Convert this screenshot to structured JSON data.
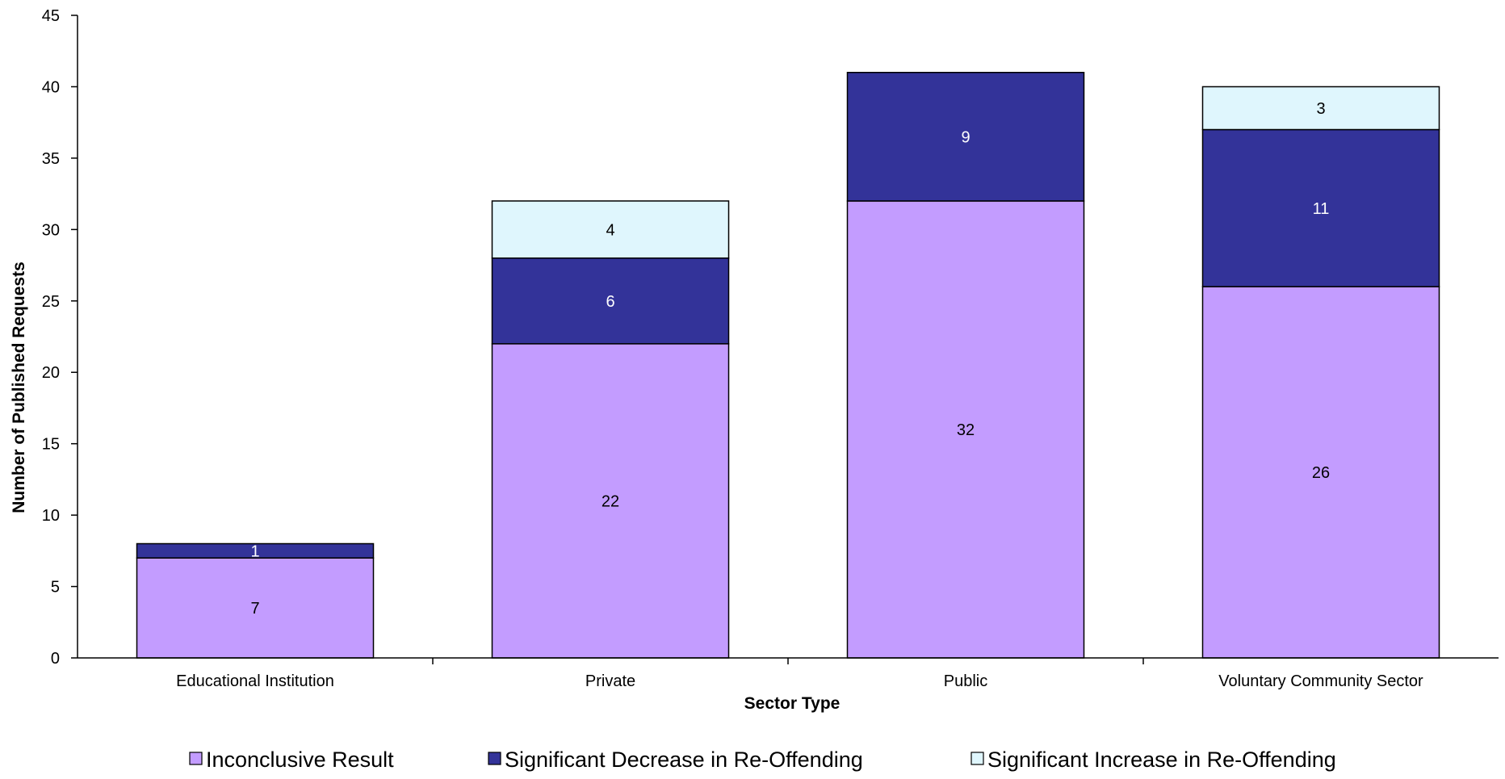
{
  "chart_data": {
    "type": "bar",
    "stacked": true,
    "title": "",
    "xlabel": "Sector Type",
    "ylabel": "Number of Published Requests",
    "ylim": [
      0,
      45
    ],
    "yticks": [
      0,
      5,
      10,
      15,
      20,
      25,
      30,
      35,
      40,
      45
    ],
    "grid": false,
    "legend_position": "bottom",
    "categories": [
      "Educational Institution",
      "Private",
      "Public",
      "Voluntary Community Sector"
    ],
    "series": [
      {
        "name": "Inconclusive Result",
        "color": "#c39cff",
        "label_color": "#000000",
        "values": [
          7,
          22,
          32,
          26
        ]
      },
      {
        "name": "Significant Decrease in Re-Offending",
        "color": "#333399",
        "label_color": "#ffffff",
        "values": [
          1,
          6,
          9,
          11
        ]
      },
      {
        "name": "Significant Increase in Re-Offending",
        "color": "#dff6fd",
        "label_color": "#000000",
        "values": [
          null,
          4,
          null,
          3
        ]
      }
    ]
  }
}
